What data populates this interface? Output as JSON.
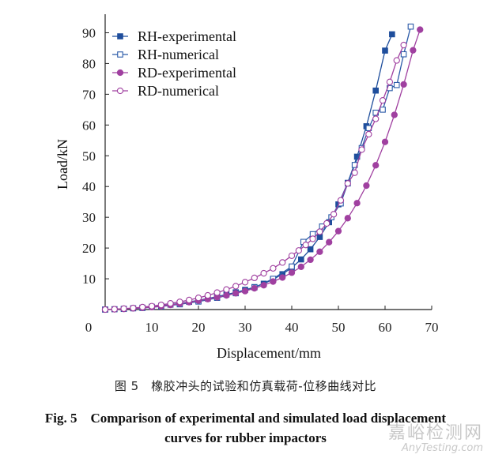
{
  "chart_data": {
    "type": "line",
    "xlabel": "Displacement/mm",
    "ylabel": "Load/kN",
    "xlim": [
      0,
      70
    ],
    "ylim": [
      0,
      95
    ],
    "xticks": [
      0,
      10,
      20,
      30,
      40,
      50,
      60,
      70
    ],
    "yticks": [
      10,
      20,
      30,
      40,
      50,
      60,
      70,
      80,
      90
    ],
    "legend_position": "top-left",
    "series": [
      {
        "name": "RH-experimental",
        "color": "#1f4e9c",
        "marker": "square-filled",
        "x": [
          0,
          2,
          4,
          6,
          8,
          10,
          12,
          14,
          16,
          18,
          20,
          22,
          24,
          26,
          28,
          30,
          32,
          34,
          36,
          38,
          40,
          42,
          44,
          46,
          48,
          50,
          52,
          54,
          56,
          58,
          60,
          61.5
        ],
        "y": [
          0,
          0.1,
          0.2,
          0.4,
          0.6,
          0.9,
          1.2,
          1.6,
          2.0,
          2.5,
          3.0,
          3.6,
          4.2,
          4.9,
          5.6,
          6.4,
          7.3,
          8.4,
          9.8,
          11.5,
          13.6,
          16.3,
          19.6,
          23.6,
          28.4,
          34.2,
          41.2,
          49.7,
          59.6,
          71.2,
          84.2,
          89.5
        ]
      },
      {
        "name": "RH-numerical",
        "color": "#2b5aa8",
        "marker": "square-open",
        "x": [
          0,
          4,
          8,
          12,
          16,
          20,
          24,
          28,
          32,
          36,
          40,
          42.5,
          44.5,
          46.5,
          48.5,
          50.5,
          52,
          53.5,
          55,
          56.5,
          58,
          59.5,
          61,
          62.5,
          64,
          65.5
        ],
        "y": [
          0,
          0.2,
          0.5,
          1.0,
          1.7,
          2.6,
          3.8,
          5.3,
          7.2,
          10.0,
          14.0,
          22.0,
          24.5,
          27.0,
          30.0,
          34.5,
          41.0,
          47.0,
          52.5,
          59.0,
          64.0,
          65.0,
          72.0,
          73.0,
          83.0,
          92.0
        ]
      },
      {
        "name": "RD-experimental",
        "color": "#a040a0",
        "marker": "circle-filled",
        "x": [
          0,
          2,
          4,
          6,
          8,
          10,
          12,
          14,
          16,
          18,
          20,
          22,
          24,
          26,
          28,
          30,
          32,
          34,
          36,
          38,
          40,
          42,
          44,
          46,
          48,
          50,
          52,
          54,
          56,
          58,
          60,
          62,
          64,
          66,
          67.5
        ],
        "y": [
          0,
          0.1,
          0.2,
          0.4,
          0.6,
          0.8,
          1.1,
          1.5,
          1.9,
          2.4,
          2.9,
          3.4,
          4.0,
          4.6,
          5.3,
          6.0,
          6.9,
          7.9,
          9.1,
          10.4,
          12.0,
          13.9,
          16.2,
          18.8,
          21.9,
          25.5,
          29.7,
          34.6,
          40.3,
          46.9,
          54.5,
          63.3,
          73.2,
          84.3,
          91.0
        ]
      },
      {
        "name": "RD-numerical",
        "color": "#a040a0",
        "marker": "circle-open",
        "x": [
          0,
          2,
          4,
          6,
          8,
          10,
          12,
          14,
          16,
          18,
          20,
          22,
          24,
          26,
          28,
          30,
          32,
          34,
          36,
          38,
          40,
          41.5,
          43,
          44.5,
          46,
          47.5,
          49,
          50.5,
          52,
          53.5,
          55,
          56.5,
          58,
          59.5,
          61,
          62.5,
          64
        ],
        "y": [
          0,
          0.1,
          0.3,
          0.5,
          0.8,
          1.1,
          1.5,
          2.0,
          2.5,
          3.1,
          3.8,
          4.6,
          5.5,
          6.5,
          7.6,
          8.9,
          10.3,
          11.8,
          13.4,
          15.3,
          17.5,
          19.2,
          21.0,
          23.0,
          25.3,
          28.0,
          31.0,
          35.5,
          41.0,
          44.5,
          52.0,
          57.0,
          62.0,
          68.0,
          74.0,
          81.0,
          86.0
        ]
      }
    ]
  },
  "caption": {
    "cn": "图 5　橡胶冲头的试验和仿真载荷-位移曲线对比",
    "en_line1": "Fig. 5　Comparison of experimental and simulated load displacement",
    "en_line2": "curves for rubber impactors"
  },
  "watermark": {
    "cn": "嘉峪检测网",
    "en": "AnyTesting.com"
  }
}
